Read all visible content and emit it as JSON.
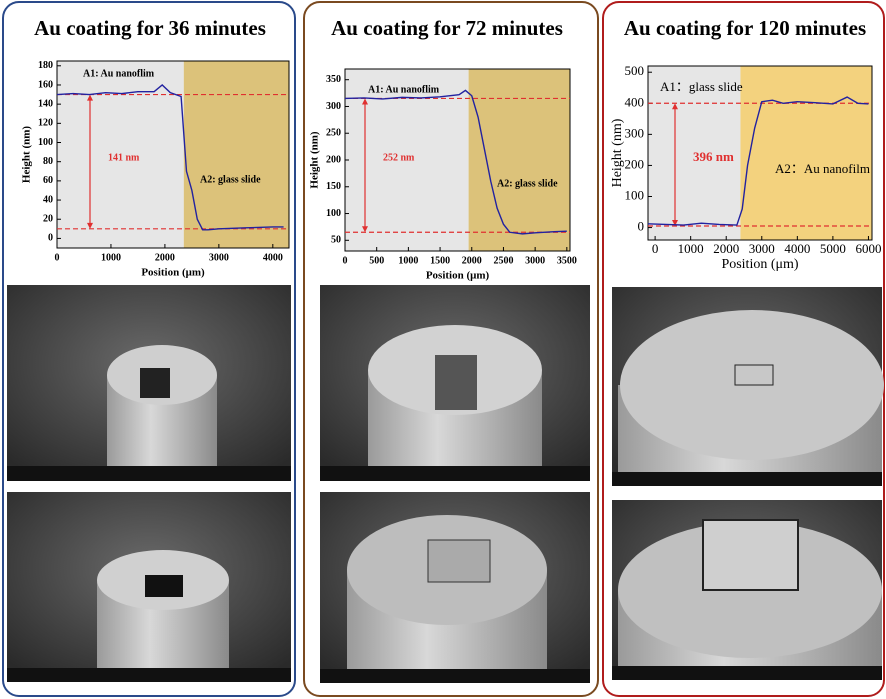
{
  "chart_data": [
    {
      "type": "line",
      "title": "Au coating for 36 minutes",
      "x_label": "Position (μm)",
      "y_label": "Height (nm)",
      "xlim": [
        0,
        4300
      ],
      "xticks": [
        0,
        1000,
        2000,
        3000,
        4000
      ],
      "ylim": [
        -10,
        185
      ],
      "yticks": [
        0,
        20,
        40,
        60,
        80,
        100,
        120,
        140,
        160,
        180
      ],
      "regions": [
        {
          "from": 0,
          "to": 2350,
          "color": "#e6e6e6"
        },
        {
          "from": 2350,
          "to": 4300,
          "color": "#dcc27a"
        }
      ],
      "region_labels": [
        "A1: Au nanoflim",
        "A2: glass slide"
      ],
      "ref_lines": [
        150,
        10
      ],
      "ref_color": "#e03030",
      "measurement": "141 nm",
      "series": [
        {
          "color": "#2222a0",
          "x": [
            0,
            300,
            600,
            900,
            1200,
            1500,
            1800,
            1950,
            2100,
            2300,
            2400,
            2500,
            2600,
            2700,
            2800,
            3000,
            3500,
            4000,
            4200
          ],
          "values": [
            150,
            151,
            150,
            152,
            151,
            153,
            153,
            160,
            152,
            148,
            70,
            50,
            20,
            9,
            9,
            10,
            11,
            12,
            12
          ]
        }
      ]
    },
    {
      "type": "line",
      "title": "Au coating for 72 minutes",
      "x_label": "Position (μm)",
      "y_label": "Height (nm)",
      "xlim": [
        0,
        3550
      ],
      "xticks": [
        0,
        500,
        1000,
        1500,
        2000,
        2500,
        3000,
        3500
      ],
      "ylim": [
        30,
        370
      ],
      "yticks": [
        50,
        100,
        150,
        200,
        250,
        300,
        350
      ],
      "regions": [
        {
          "from": 0,
          "to": 1950,
          "color": "#e6e6e6"
        },
        {
          "from": 1950,
          "to": 3550,
          "color": "#dcc27a"
        }
      ],
      "region_labels": [
        "A1: Au nanoflim",
        "A2: glass slide"
      ],
      "ref_lines": [
        315,
        65
      ],
      "ref_color": "#e03030",
      "measurement": "252 nm",
      "series": [
        {
          "color": "#2222a0",
          "x": [
            0,
            300,
            600,
            900,
            1200,
            1500,
            1800,
            1900,
            2000,
            2100,
            2200,
            2300,
            2400,
            2500,
            2600,
            2800,
            3000,
            3300,
            3500
          ],
          "values": [
            315,
            316,
            314,
            317,
            316,
            318,
            322,
            330,
            320,
            280,
            220,
            160,
            110,
            80,
            65,
            62,
            64,
            66,
            67
          ]
        }
      ]
    },
    {
      "type": "line",
      "title": "Au coating for 120 minutes",
      "x_label": "Position (μm)",
      "y_label": "Height (nm)",
      "xlim": [
        -200,
        6100
      ],
      "xticks": [
        0,
        1000,
        2000,
        3000,
        4000,
        5000,
        6000
      ],
      "ylim": [
        -40,
        520
      ],
      "yticks": [
        0,
        100,
        200,
        300,
        400,
        500
      ],
      "regions": [
        {
          "from": -200,
          "to": 2400,
          "color": "#e6e6e6"
        },
        {
          "from": 2400,
          "to": 6100,
          "color": "#f3d27e"
        }
      ],
      "region_labels": [
        "A1：glass slide",
        "A2：Au nanofilm"
      ],
      "ref_lines": [
        400,
        5
      ],
      "ref_color": "#e03030",
      "measurement": "396 nm",
      "series": [
        {
          "color": "#2222a0",
          "x": [
            -200,
            300,
            800,
            1300,
            1800,
            2300,
            2450,
            2600,
            2800,
            3000,
            3300,
            3600,
            4000,
            4500,
            5000,
            5400,
            5700,
            6000
          ],
          "values": [
            12,
            10,
            8,
            14,
            10,
            8,
            60,
            200,
            320,
            405,
            410,
            400,
            405,
            402,
            398,
            420,
            400,
            398
          ]
        }
      ]
    }
  ]
}
